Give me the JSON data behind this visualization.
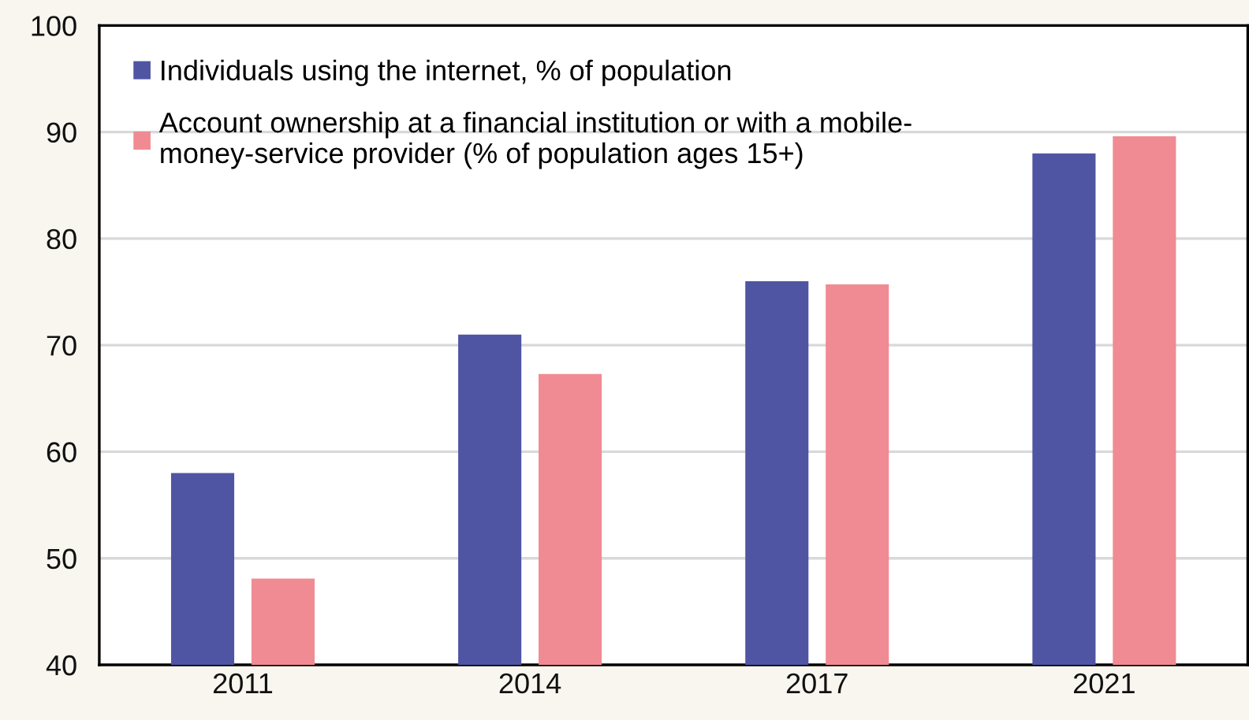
{
  "chart_data": {
    "type": "bar",
    "categories": [
      "2011",
      "2014",
      "2017",
      "2021"
    ],
    "series": [
      {
        "name": "Individuals using the internet, % of population",
        "color": "#4f55a3",
        "values": [
          58.0,
          71.0,
          76.0,
          88.0
        ]
      },
      {
        "name": "Account ownership at a financial institution or with a mobile-\nmoney-service provider (% of population ages 15+)",
        "color": "#f08b93",
        "values": [
          48.1,
          67.3,
          75.7,
          89.6
        ]
      }
    ],
    "ylim": [
      40,
      100
    ],
    "yticks": [
      40,
      50,
      60,
      70,
      80,
      90,
      100
    ],
    "grid": "y",
    "legend": "top left"
  }
}
